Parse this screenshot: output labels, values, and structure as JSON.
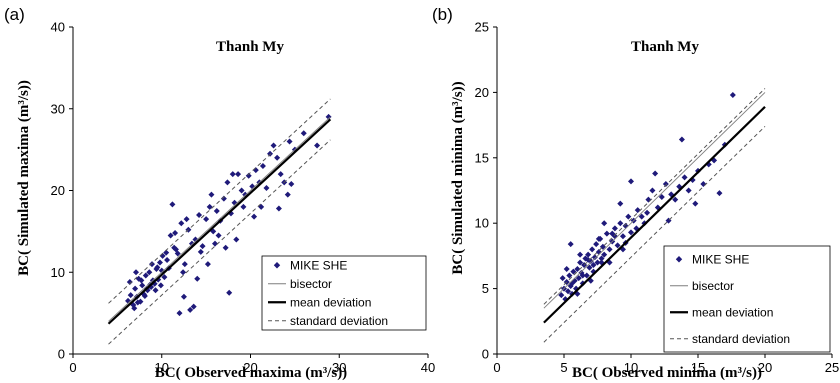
{
  "chart_data": [
    {
      "type": "scatter",
      "panel_label": "(a)",
      "title": "Thanh My",
      "xlabel": "BC( Observed maxima (m³/s))",
      "ylabel": "BC( Simulated maxima (m³/s))",
      "xlim": [
        0,
        40
      ],
      "ylim": [
        0,
        40
      ],
      "xticks": [
        0,
        10,
        20,
        30,
        40
      ],
      "yticks": [
        0,
        10,
        20,
        30,
        40
      ],
      "grid": false,
      "legend_position": "bottom-right",
      "legend": [
        "MIKE SHE",
        "bisector",
        "mean deviation",
        "standard deviation"
      ],
      "series": [
        {
          "name": "MIKE SHE",
          "style": "marker",
          "color": "#1f1a7a",
          "x": [
            6.2,
            6.5,
            6.8,
            7.0,
            7.2,
            7.4,
            7.6,
            7.8,
            8.0,
            8.2,
            8.4,
            8.6,
            8.8,
            9.0,
            9.2,
            9.4,
            9.6,
            9.8,
            10.0,
            10.3,
            6.4,
            7.1,
            7.7,
            8.3,
            8.9,
            9.5,
            10.1,
            10.6,
            11.0,
            11.4,
            11.8,
            12.2,
            12.6,
            13.0,
            13.4,
            13.8,
            14.2,
            14.6,
            15.0,
            15.4,
            15.8,
            16.2,
            16.6,
            17.0,
            17.4,
            17.8,
            18.2,
            18.6,
            19.0,
            19.4,
            19.8,
            20.2,
            20.6,
            21.0,
            21.4,
            21.8,
            22.2,
            22.6,
            23.0,
            23.4,
            23.8,
            24.2,
            24.6,
            25.0,
            26.0,
            27.5,
            28.8,
            12.0,
            12.5,
            13.2,
            13.6,
            14.0,
            15.2,
            16.0,
            17.6,
            18.4,
            19.2,
            20.4,
            22.0,
            6.9,
            7.3,
            8.1,
            8.7,
            9.3,
            9.9,
            10.8,
            11.2,
            11.6,
            12.4,
            12.8,
            14.4,
            15.6,
            16.4,
            17.2,
            18.0,
            21.2,
            23.2,
            24.4,
            10.5,
            11.5
          ],
          "y": [
            6.5,
            7.2,
            6.0,
            8.0,
            7.0,
            9.2,
            6.4,
            8.4,
            7.3,
            9.6,
            7.8,
            10.0,
            8.2,
            9.0,
            8.6,
            10.4,
            9.1,
            11.2,
            10.2,
            9.4,
            8.8,
            10.0,
            9.0,
            8.0,
            11.0,
            10.6,
            12.0,
            11.5,
            14.5,
            13.0,
            12.3,
            16.0,
            11.0,
            15.2,
            13.5,
            14.0,
            17.0,
            13.2,
            16.5,
            18.0,
            15.0,
            17.5,
            16.3,
            19.0,
            21.0,
            17.2,
            18.5,
            22.0,
            20.0,
            19.5,
            21.8,
            20.5,
            22.5,
            21.0,
            23.0,
            20.3,
            24.5,
            25.5,
            24.0,
            22.0,
            21.0,
            19.5,
            20.8,
            25.0,
            27.0,
            25.5,
            29.0,
            5.0,
            7.0,
            5.4,
            5.8,
            9.2,
            11.0,
            13.5,
            7.5,
            14.0,
            18.0,
            16.8,
            8.0,
            5.6,
            6.3,
            7.1,
            8.5,
            7.8,
            8.4,
            10.5,
            18.3,
            12.8,
            10.0,
            16.5,
            12.5,
            19.5,
            14.5,
            13.0,
            22.0,
            18.0,
            17.8,
            26.0,
            12.4,
            14.8
          ]
        },
        {
          "name": "bisector",
          "style": "line-thin",
          "color": "#7f7f7f",
          "x": [
            4,
            29
          ],
          "y": [
            4,
            29
          ]
        },
        {
          "name": "mean deviation",
          "style": "line-thick",
          "color": "#000000",
          "x": [
            4,
            29
          ],
          "y": [
            3.7,
            28.7
          ]
        },
        {
          "name": "standard deviation",
          "style": "line-dashed",
          "color": "#555555",
          "x": [
            4,
            29
          ],
          "y": [
            6.2,
            31.2
          ]
        },
        {
          "name": "standard deviation",
          "style": "line-dashed",
          "color": "#555555",
          "x": [
            4,
            29
          ],
          "y": [
            1.2,
            26.2
          ]
        }
      ]
    },
    {
      "type": "scatter",
      "panel_label": "(b)",
      "title": "Thanh My",
      "xlabel": "BC( Observed minima (m³/s))",
      "ylabel": "BC( Simulated minima (m³/s))",
      "xlim": [
        0,
        25
      ],
      "ylim": [
        0,
        25
      ],
      "xticks": [
        0,
        5,
        10,
        15,
        20,
        25
      ],
      "yticks": [
        0,
        5,
        10,
        15,
        20,
        25
      ],
      "grid": false,
      "legend_position": "bottom-right",
      "legend": [
        "MIKE SHE",
        "bisector",
        "mean deviation",
        "standard deviation"
      ],
      "series": [
        {
          "name": "MIKE SHE",
          "style": "marker",
          "color": "#1f1a7a",
          "x": [
            4.8,
            5.0,
            5.1,
            5.2,
            5.3,
            5.4,
            5.5,
            5.6,
            5.7,
            5.8,
            5.9,
            6.0,
            6.1,
            6.2,
            6.3,
            6.4,
            6.5,
            6.6,
            6.7,
            6.8,
            6.9,
            7.0,
            7.1,
            7.2,
            7.3,
            7.4,
            7.5,
            7.6,
            7.7,
            7.8,
            7.9,
            8.0,
            8.2,
            8.4,
            8.6,
            8.8,
            9.0,
            9.2,
            9.4,
            9.6,
            9.8,
            10.0,
            10.2,
            10.5,
            10.8,
            11.0,
            11.3,
            11.6,
            12.0,
            12.3,
            12.6,
            13.0,
            13.3,
            13.6,
            14.0,
            14.3,
            14.6,
            15.0,
            15.4,
            15.8,
            16.2,
            16.6,
            17.0,
            17.6,
            4.9,
            5.2,
            5.6,
            6.0,
            6.4,
            6.8,
            7.2,
            7.6,
            8.0,
            8.4,
            8.8,
            9.2,
            9.6,
            10.0,
            10.4,
            11.8,
            12.8,
            13.8,
            14.8,
            5.5,
            6.2,
            7.0,
            7.8,
            8.6,
            9.4,
            11.2
          ],
          "y": [
            4.5,
            5.0,
            4.2,
            5.5,
            4.8,
            6.0,
            5.2,
            4.6,
            6.3,
            5.6,
            5.0,
            6.5,
            5.8,
            7.0,
            6.2,
            5.4,
            6.8,
            7.3,
            6.0,
            7.6,
            6.6,
            7.1,
            8.0,
            6.8,
            7.4,
            8.4,
            7.0,
            7.8,
            8.8,
            7.3,
            8.2,
            7.6,
            9.2,
            8.0,
            8.6,
            9.6,
            8.3,
            10.0,
            9.0,
            9.8,
            10.5,
            9.3,
            10.2,
            11.0,
            10.5,
            10.0,
            11.8,
            12.5,
            11.2,
            12.0,
            13.0,
            12.2,
            11.8,
            12.8,
            13.5,
            12.5,
            13.3,
            14.0,
            13.0,
            14.5,
            14.8,
            12.3,
            16.0,
            19.8,
            5.8,
            6.5,
            5.4,
            4.6,
            6.0,
            7.2,
            6.3,
            8.8,
            10.0,
            7.0,
            9.0,
            11.5,
            8.5,
            13.2,
            9.6,
            13.8,
            10.2,
            16.4,
            11.5,
            8.4,
            7.6,
            5.6,
            7.0,
            9.2,
            8.0,
            10.8
          ]
        },
        {
          "name": "bisector",
          "style": "line-thin",
          "color": "#7f7f7f",
          "x": [
            3.5,
            20
          ],
          "y": [
            3.5,
            20
          ]
        },
        {
          "name": "mean deviation",
          "style": "line-thick",
          "color": "#000000",
          "x": [
            3.5,
            20
          ],
          "y": [
            2.4,
            18.9
          ]
        },
        {
          "name": "standard deviation",
          "style": "line-dashed",
          "color": "#555555",
          "x": [
            3.5,
            20
          ],
          "y": [
            3.8,
            20.3
          ]
        },
        {
          "name": "standard deviation",
          "style": "line-dashed",
          "color": "#555555",
          "x": [
            3.5,
            20
          ],
          "y": [
            0.9,
            17.4
          ]
        }
      ]
    }
  ]
}
